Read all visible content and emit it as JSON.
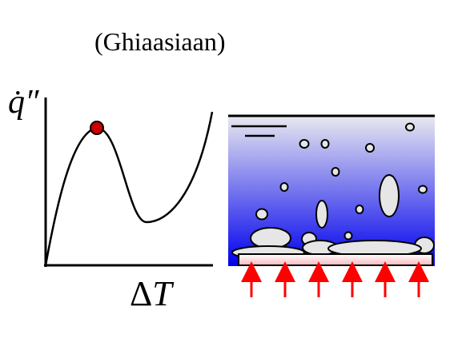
{
  "credit": "(Ghiaasiaan)",
  "boiling_curve": {
    "ylabel": "q̇″",
    "xlabel_symbol": "Δ",
    "xlabel_var": "T",
    "marked_point": "critical heat flux (maximum)",
    "marker_color": "#cc0000",
    "curve_color": "#000000"
  },
  "pool_schematic": {
    "liquid_gradient_top": "#e9e9ef",
    "liquid_gradient_bottom": "#0000ee",
    "heater_color": "#f7b8bd",
    "bubble_fill": "#e6e6e6",
    "arrow_color": "#ff0000",
    "heat_arrows": 6
  },
  "colors": {
    "background": "#ffffff",
    "outline": "#000000"
  }
}
